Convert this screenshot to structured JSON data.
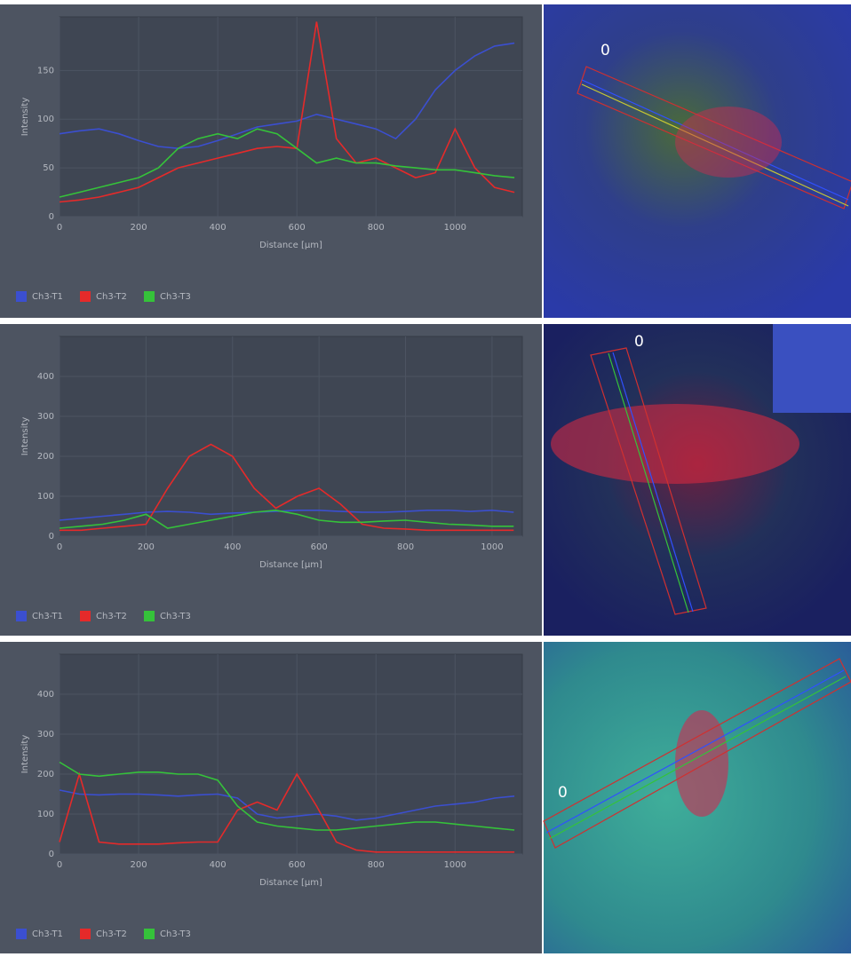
{
  "chart_data": [
    {
      "type": "line",
      "xlabel": "Distance [µm]",
      "ylabel": "Intensity",
      "annotation": "0",
      "xlim": [
        0,
        1170
      ],
      "xticks": [
        0,
        200,
        400,
        600,
        800,
        1000
      ],
      "ylim": [
        0,
        205
      ],
      "yticks": [
        0,
        50,
        100,
        150
      ],
      "grid": true,
      "x": [
        0,
        50,
        100,
        150,
        200,
        250,
        300,
        350,
        400,
        450,
        500,
        550,
        600,
        650,
        700,
        750,
        800,
        850,
        900,
        950,
        1000,
        1050,
        1100,
        1150
      ],
      "series": [
        {
          "name": "Ch3-T1",
          "color": "#3b4fd0",
          "values": [
            85,
            88,
            90,
            85,
            78,
            72,
            70,
            72,
            78,
            85,
            92,
            95,
            98,
            105,
            100,
            95,
            90,
            80,
            100,
            130,
            150,
            165,
            175,
            178
          ]
        },
        {
          "name": "Ch3-T2",
          "color": "#e52a2a",
          "values": [
            15,
            17,
            20,
            25,
            30,
            40,
            50,
            55,
            60,
            65,
            70,
            72,
            70,
            200,
            80,
            55,
            60,
            50,
            40,
            45,
            90,
            50,
            30,
            25
          ]
        },
        {
          "name": "Ch3-T3",
          "color": "#35c23a",
          "values": [
            20,
            25,
            30,
            35,
            40,
            50,
            70,
            80,
            85,
            80,
            90,
            85,
            70,
            55,
            60,
            55,
            55,
            52,
            50,
            48,
            48,
            45,
            42,
            40
          ]
        }
      ]
    },
    {
      "type": "line",
      "xlabel": "Distance [µm]",
      "ylabel": "Intensity",
      "annotation": "0",
      "xlim": [
        0,
        1070
      ],
      "xticks": [
        0,
        200,
        400,
        600,
        800,
        1000
      ],
      "ylim": [
        0,
        500
      ],
      "yticks": [
        0,
        100,
        200,
        300,
        400
      ],
      "grid": true,
      "x": [
        0,
        50,
        100,
        150,
        200,
        250,
        300,
        350,
        400,
        450,
        500,
        550,
        600,
        650,
        700,
        750,
        800,
        850,
        900,
        950,
        1000,
        1050
      ],
      "series": [
        {
          "name": "Ch3-T1",
          "color": "#3b4fd0",
          "values": [
            40,
            45,
            50,
            55,
            60,
            62,
            60,
            55,
            58,
            60,
            62,
            65,
            65,
            62,
            60,
            60,
            62,
            65,
            65,
            62,
            65,
            60
          ]
        },
        {
          "name": "Ch3-T2",
          "color": "#e52a2a",
          "values": [
            15,
            15,
            20,
            25,
            30,
            120,
            200,
            230,
            200,
            120,
            70,
            100,
            120,
            80,
            30,
            20,
            18,
            15,
            15,
            15,
            15,
            15
          ]
        },
        {
          "name": "Ch3-T3",
          "color": "#35c23a",
          "values": [
            20,
            25,
            30,
            40,
            55,
            20,
            30,
            40,
            50,
            60,
            65,
            55,
            40,
            35,
            35,
            38,
            40,
            35,
            30,
            28,
            25,
            25
          ]
        }
      ]
    },
    {
      "type": "line",
      "xlabel": "Distance [µm]",
      "ylabel": "Intensity",
      "annotation": "0",
      "xlim": [
        0,
        1170
      ],
      "xticks": [
        0,
        200,
        400,
        600,
        800,
        1000
      ],
      "ylim": [
        0,
        500
      ],
      "yticks": [
        0,
        100,
        200,
        300,
        400
      ],
      "grid": true,
      "x": [
        0,
        50,
        100,
        150,
        200,
        250,
        300,
        350,
        400,
        450,
        500,
        550,
        600,
        650,
        700,
        750,
        800,
        850,
        900,
        950,
        1000,
        1050,
        1100,
        1150
      ],
      "series": [
        {
          "name": "Ch3-T1",
          "color": "#3b4fd0",
          "values": [
            160,
            150,
            148,
            150,
            150,
            148,
            145,
            148,
            150,
            140,
            100,
            90,
            95,
            100,
            95,
            85,
            90,
            100,
            110,
            120,
            125,
            130,
            140,
            145
          ]
        },
        {
          "name": "Ch3-T2",
          "color": "#e52a2a",
          "values": [
            30,
            200,
            30,
            25,
            25,
            25,
            28,
            30,
            30,
            110,
            130,
            110,
            200,
            120,
            30,
            10,
            5,
            5,
            5,
            5,
            5,
            5,
            5,
            5
          ]
        },
        {
          "name": "Ch3-T3",
          "color": "#35c23a",
          "values": [
            230,
            200,
            195,
            200,
            205,
            205,
            200,
            200,
            185,
            120,
            80,
            70,
            65,
            60,
            60,
            65,
            70,
            75,
            80,
            80,
            75,
            70,
            65,
            60
          ]
        }
      ]
    }
  ]
}
